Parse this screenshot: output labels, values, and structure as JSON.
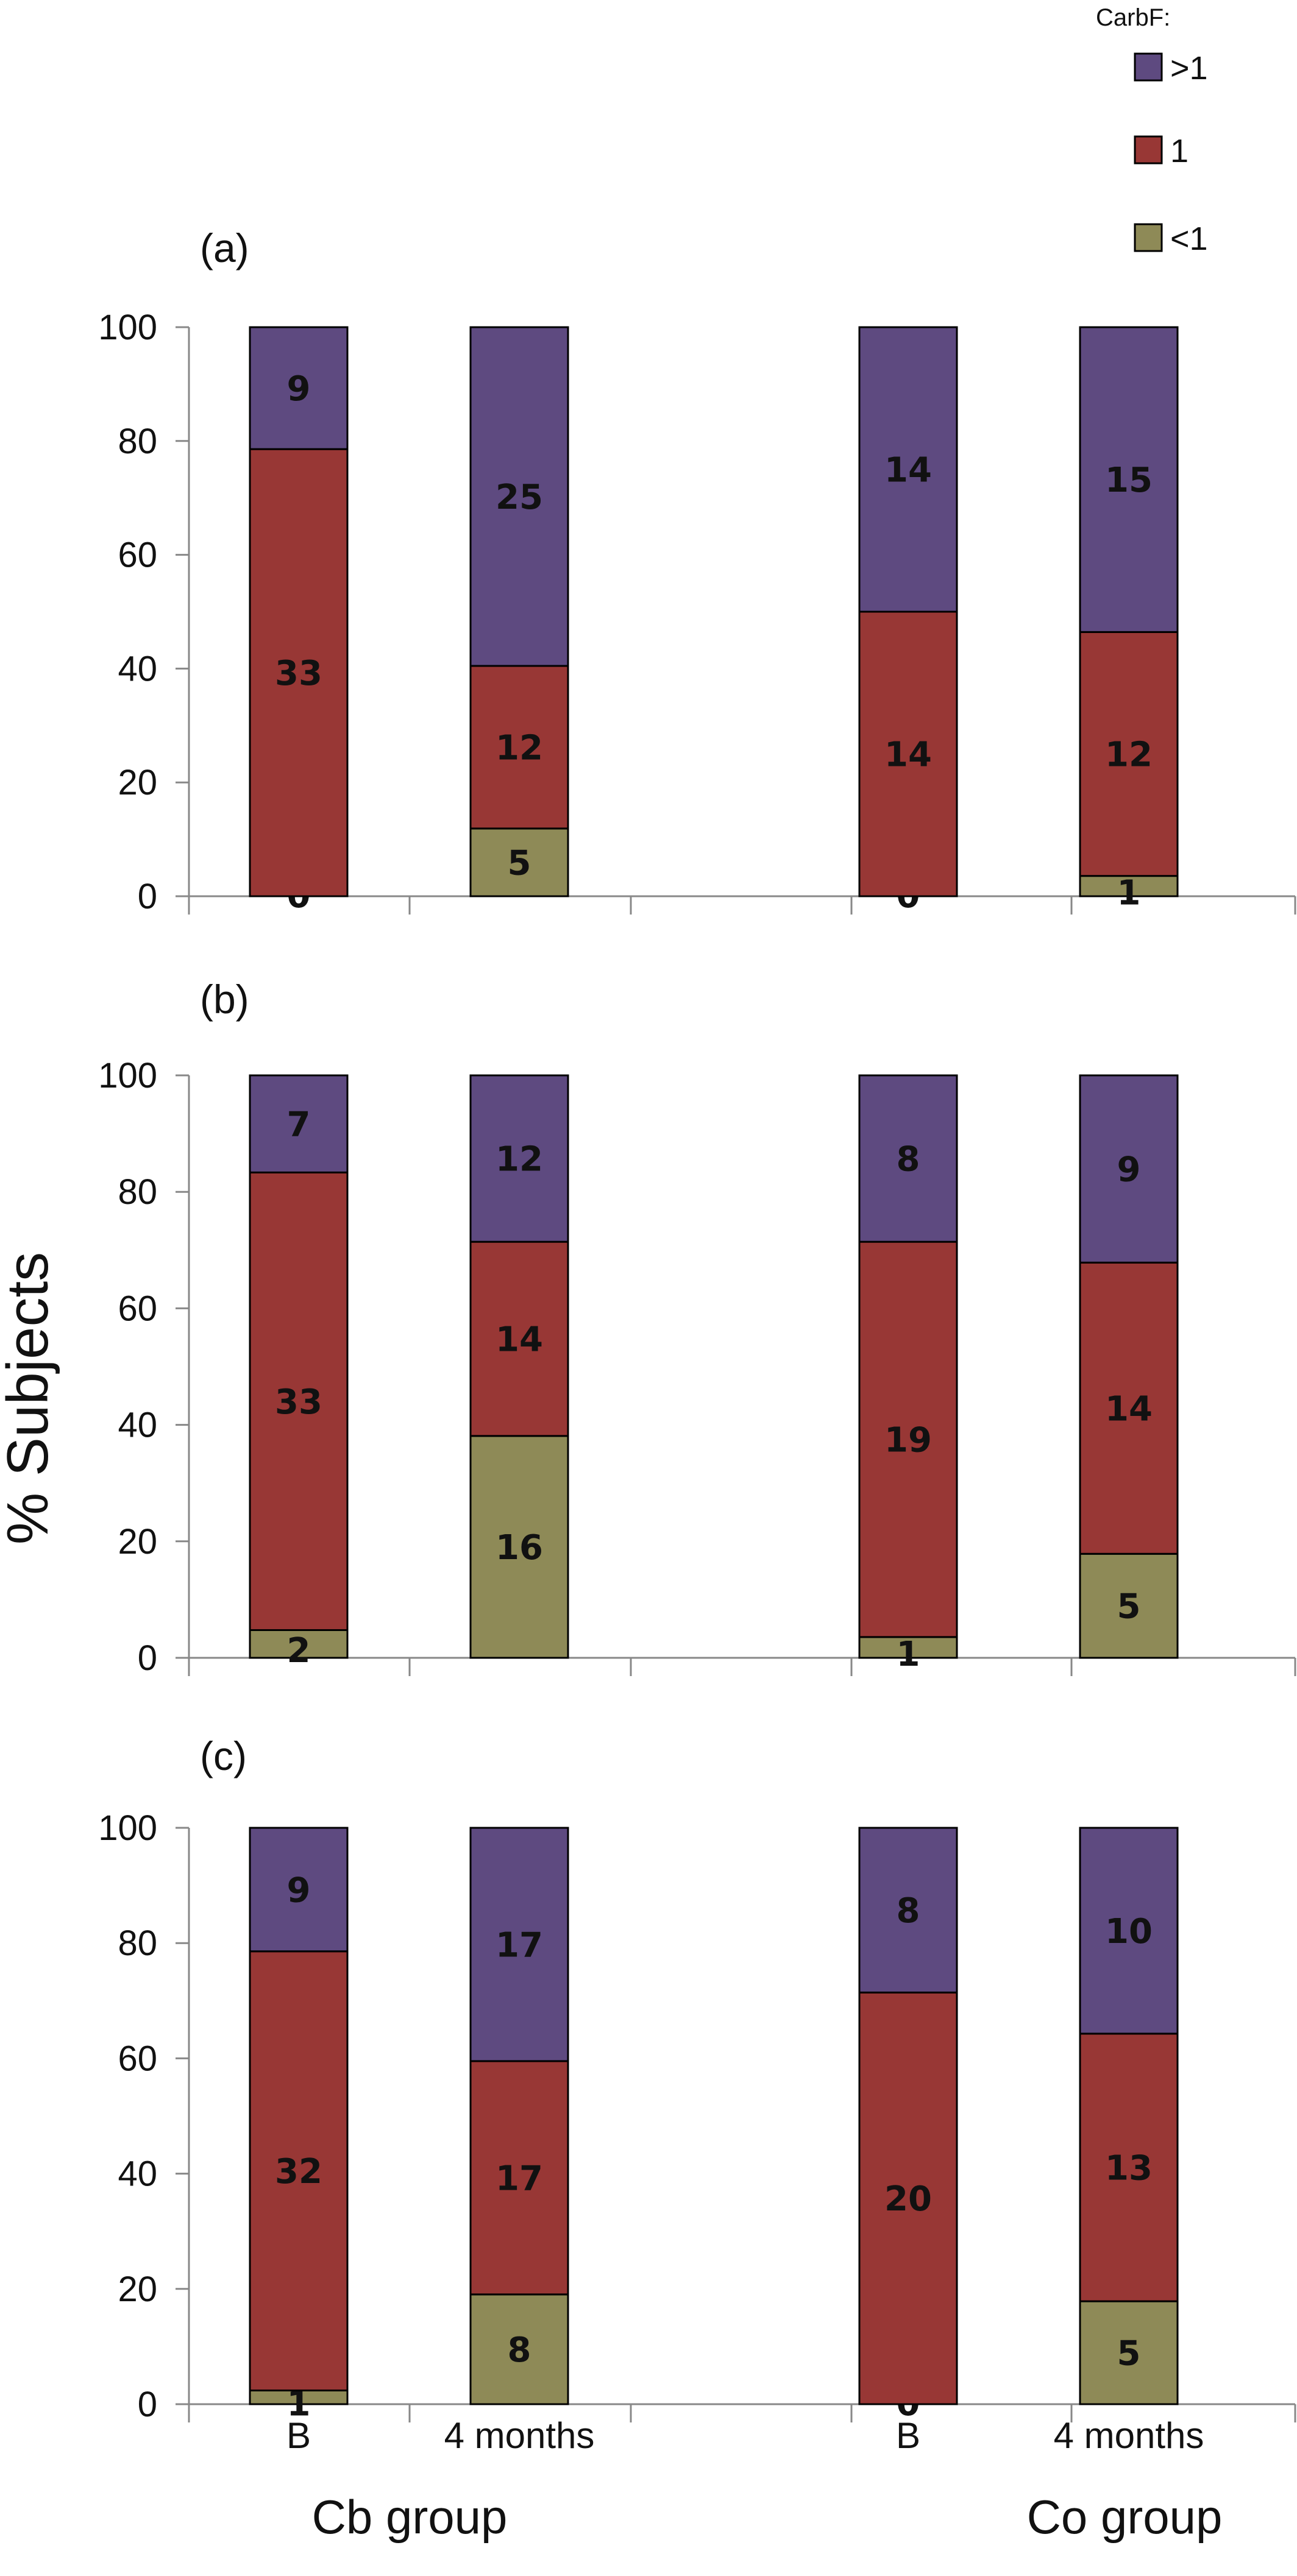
{
  "chart_data": {
    "type": "bar",
    "stacked": true,
    "ylabel": "% Subjects",
    "ylim": [
      0,
      100
    ],
    "yticks": [
      "0",
      "20",
      "40",
      "60",
      "80",
      "100"
    ],
    "categories": [
      "B",
      "4 months",
      "B",
      "4 months"
    ],
    "groups": [
      "Cb group",
      "Co group"
    ],
    "legend": {
      "title": "CarbF:",
      "position": "top-right",
      "entries": [
        {
          "name": ">1",
          "color": "#5e4a80"
        },
        {
          "name": "1",
          "color": "#983735"
        },
        {
          "name": "<1",
          "color": "#8e8a57"
        }
      ]
    },
    "colors": {
      "lt1": "#8e8a57",
      "eq1": "#983735",
      "gt1": "#5e4a80"
    },
    "panels": [
      {
        "label": "(a)",
        "bars": [
          {
            "category": "B",
            "lt1": 0,
            "eq1": 33,
            "gt1": 9
          },
          {
            "category": "4 months",
            "lt1": 5,
            "eq1": 12,
            "gt1": 25
          },
          {
            "category": "B",
            "lt1": 0,
            "eq1": 14,
            "gt1": 14
          },
          {
            "category": "4 months",
            "lt1": 1,
            "eq1": 12,
            "gt1": 15
          }
        ]
      },
      {
        "label": "(b)",
        "bars": [
          {
            "category": "B",
            "lt1": 2,
            "eq1": 33,
            "gt1": 7
          },
          {
            "category": "4 months",
            "lt1": 16,
            "eq1": 14,
            "gt1": 12
          },
          {
            "category": "B",
            "lt1": 1,
            "eq1": 19,
            "gt1": 8
          },
          {
            "category": "4 months",
            "lt1": 5,
            "eq1": 14,
            "gt1": 9
          }
        ]
      },
      {
        "label": "(c)",
        "bars": [
          {
            "category": "B",
            "lt1": 1,
            "eq1": 32,
            "gt1": 9
          },
          {
            "category": "4 months",
            "lt1": 8,
            "eq1": 17,
            "gt1": 17
          },
          {
            "category": "B",
            "lt1": 0,
            "eq1": 20,
            "gt1": 8
          },
          {
            "category": "4 months",
            "lt1": 5,
            "eq1": 13,
            "gt1": 10
          }
        ]
      }
    ]
  }
}
